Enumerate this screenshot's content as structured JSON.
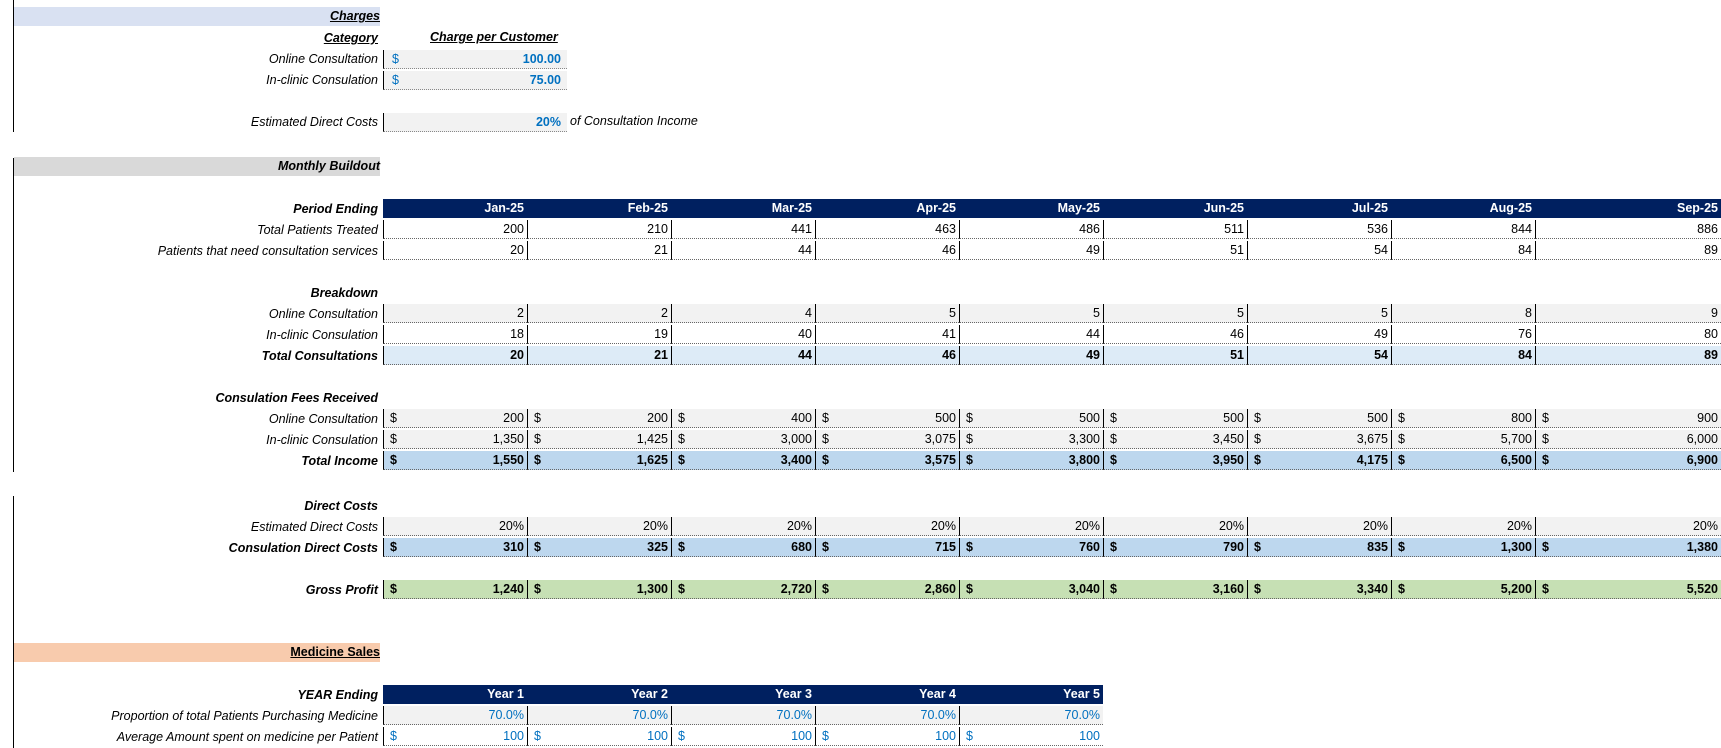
{
  "charges": {
    "title": "Charges",
    "category_header": "Category",
    "charge_header": "Charge per Customer",
    "rows": [
      {
        "label": "Online Consultation",
        "currency": "$",
        "value": "100.00"
      },
      {
        "label": "In-clinic Consulation",
        "currency": "$",
        "value": "75.00"
      }
    ],
    "direct_costs_label": "Estimated  Direct Costs",
    "direct_costs_value": "20%",
    "direct_costs_suffix": "of Consultation Income"
  },
  "monthly": {
    "title": "Monthly Buildout",
    "period_label": "Period Ending",
    "months": [
      "Jan-25",
      "Feb-25",
      "Mar-25",
      "Apr-25",
      "May-25",
      "Jun-25",
      "Jul-25",
      "Aug-25",
      "Sep-25"
    ],
    "total_patients": {
      "label": "Total Patients Treated",
      "values": [
        "200",
        "210",
        "441",
        "463",
        "486",
        "511",
        "536",
        "844",
        "886"
      ]
    },
    "need_consult": {
      "label": "Patients that need consultation services",
      "values": [
        "20",
        "21",
        "44",
        "46",
        "49",
        "51",
        "54",
        "84",
        "89"
      ]
    },
    "breakdown_label": "Breakdown",
    "online": {
      "label": "Online Consultation",
      "values": [
        "2",
        "2",
        "4",
        "5",
        "5",
        "5",
        "5",
        "8",
        "9"
      ]
    },
    "inclinic": {
      "label": "In-clinic Consulation",
      "values": [
        "18",
        "19",
        "40",
        "41",
        "44",
        "46",
        "49",
        "76",
        "80"
      ]
    },
    "total_consult": {
      "label": "Total Consultations",
      "values": [
        "20",
        "21",
        "44",
        "46",
        "49",
        "51",
        "54",
        "84",
        "89"
      ]
    },
    "fees_label": "Consulation Fees Received",
    "fees_online": {
      "label": "Online Consultation",
      "values": [
        "200",
        "200",
        "400",
        "500",
        "500",
        "500",
        "500",
        "800",
        "900"
      ]
    },
    "fees_inclinic": {
      "label": "In-clinic Consulation",
      "values": [
        "1,350",
        "1,425",
        "3,000",
        "3,075",
        "3,300",
        "3,450",
        "3,675",
        "5,700",
        "6,000"
      ]
    },
    "total_income": {
      "label": "Total Income",
      "values": [
        "1,550",
        "1,625",
        "3,400",
        "3,575",
        "3,800",
        "3,950",
        "4,175",
        "6,500",
        "6,900"
      ]
    },
    "direct_costs_label": "Direct Costs",
    "est_direct": {
      "label": "Estimated  Direct Costs",
      "values": [
        "20%",
        "20%",
        "20%",
        "20%",
        "20%",
        "20%",
        "20%",
        "20%",
        "20%"
      ]
    },
    "consult_direct": {
      "label": "Consulation Direct Costs",
      "values": [
        "310",
        "325",
        "680",
        "715",
        "760",
        "790",
        "835",
        "1,300",
        "1,380"
      ]
    },
    "gross_profit": {
      "label": "Gross Profit",
      "values": [
        "1,240",
        "1,300",
        "2,720",
        "2,860",
        "3,040",
        "3,160",
        "3,340",
        "5,200",
        "5,520"
      ]
    },
    "currency": "$"
  },
  "medicine": {
    "title": "Medicine Sales",
    "year_label": "YEAR Ending",
    "years": [
      "Year 1",
      "Year 2",
      "Year 3",
      "Year 4",
      "Year 5"
    ],
    "proportion": {
      "label": "Proportion of total Patients Purchasing Medicine",
      "values": [
        "70.0%",
        "70.0%",
        "70.0%",
        "70.0%",
        "70.0%"
      ]
    },
    "avg_spent": {
      "label": "Average Amount spent on medicine per Patient",
      "values": [
        "100",
        "100",
        "100",
        "100",
        "100"
      ]
    },
    "currency": "$"
  }
}
